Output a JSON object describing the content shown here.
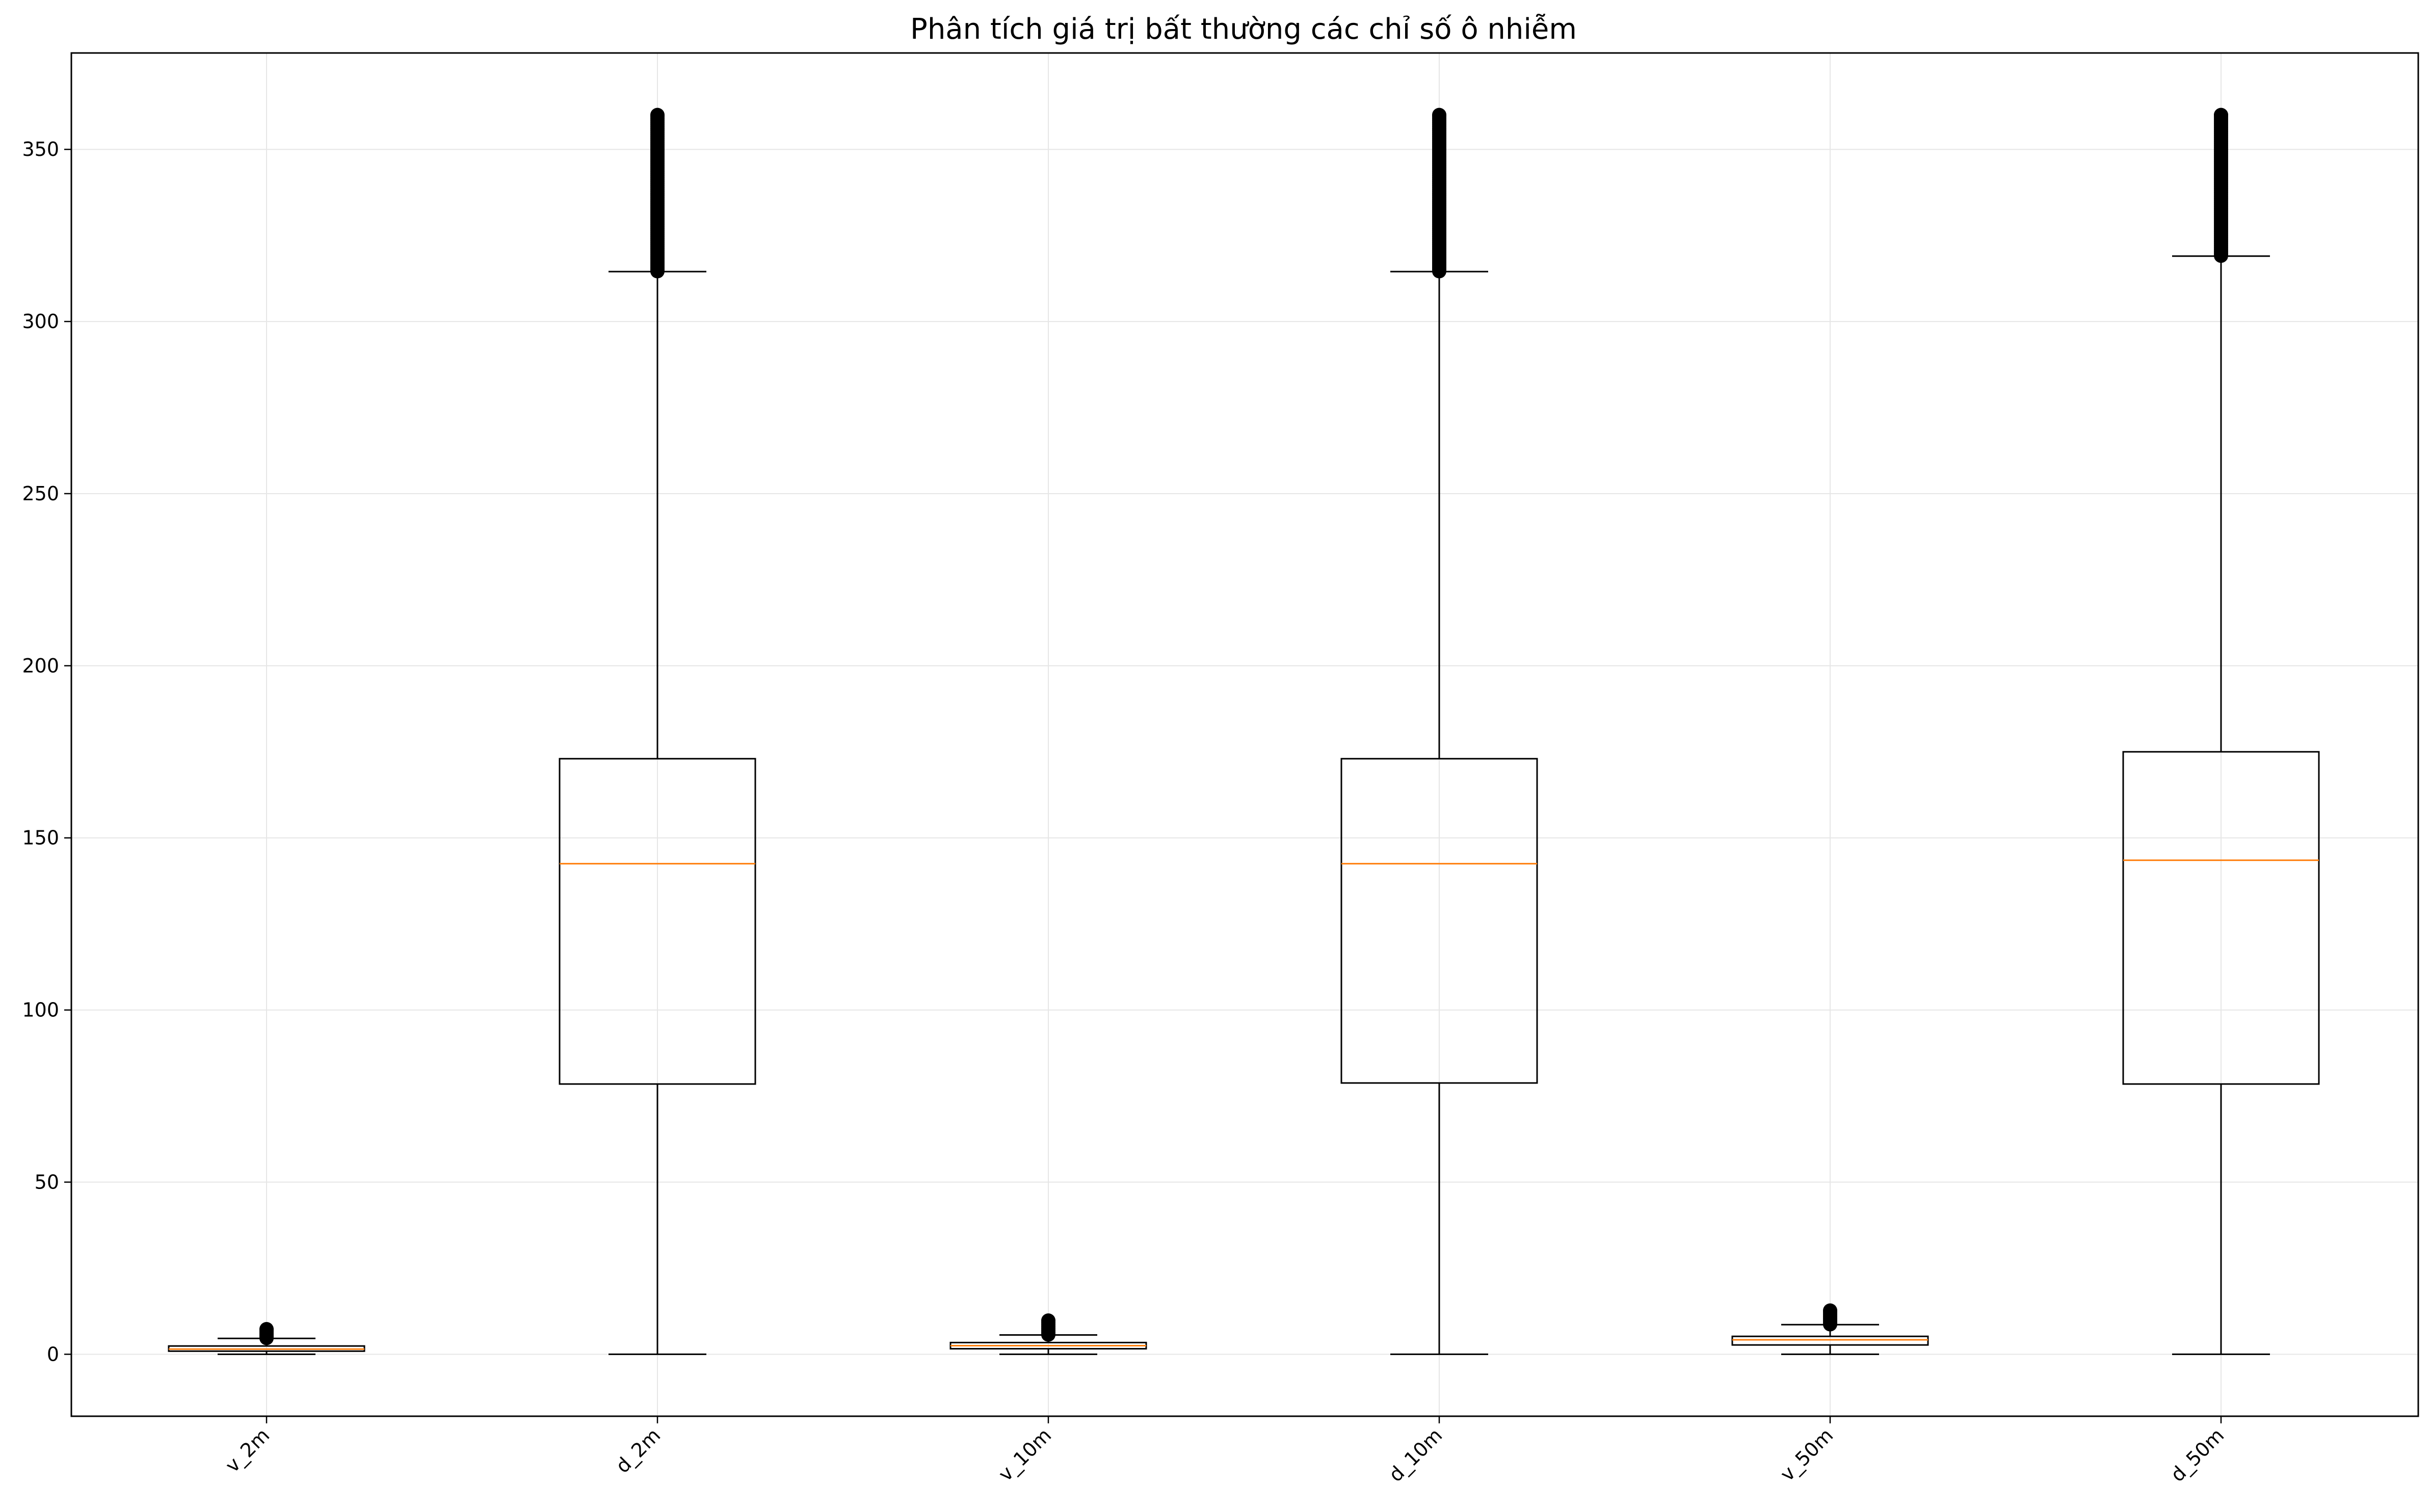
{
  "chart_data": {
    "type": "boxplot",
    "title": "Phân tích giá trị bất thường các chỉ số ô nhiễm",
    "xlabel": "",
    "ylabel": "",
    "ylim": [
      -18,
      378
    ],
    "yticks": [
      "0",
      "50",
      "100",
      "150",
      "200",
      "250",
      "300",
      "350"
    ],
    "ytick_values": [
      0,
      50,
      100,
      150,
      200,
      250,
      300,
      350
    ],
    "grid": true,
    "categories": [
      "v_2m",
      "d_2m",
      "v_10m",
      "d_10m",
      "v_50m",
      "d_50m"
    ],
    "boxes": [
      {
        "label": "v_2m",
        "whisker_low": 0,
        "q1": 0.9,
        "median": 1.5,
        "q3": 2.4,
        "whisker_high": 4.6,
        "outliers_from": 4.7,
        "outliers_to": 7.3
      },
      {
        "label": "d_2m",
        "whisker_low": 0,
        "q1": 78.5,
        "median": 142.5,
        "q3": 173.0,
        "whisker_high": 314.5,
        "outliers_from": 314.6,
        "outliers_to": 360
      },
      {
        "label": "v_10m",
        "whisker_low": 0,
        "q1": 1.6,
        "median": 2.5,
        "q3": 3.4,
        "whisker_high": 5.6,
        "outliers_from": 5.7,
        "outliers_to": 9.8
      },
      {
        "label": "d_10m",
        "whisker_low": 0,
        "q1": 78.8,
        "median": 142.5,
        "q3": 173.0,
        "whisker_high": 314.5,
        "outliers_from": 314.6,
        "outliers_to": 360
      },
      {
        "label": "v_50m",
        "whisker_low": 0,
        "q1": 2.7,
        "median": 4.2,
        "q3": 5.2,
        "whisker_high": 8.6,
        "outliers_from": 8.7,
        "outliers_to": 12.7
      },
      {
        "label": "d_50m",
        "whisker_low": 0,
        "q1": 78.5,
        "median": 143.5,
        "q3": 175.0,
        "whisker_high": 319.0,
        "outliers_from": 319.1,
        "outliers_to": 360
      }
    ],
    "colors": {
      "box_edge": "#000000",
      "median": "#ff7f0e",
      "outlier": "#000000",
      "grid": "#e6e6e6",
      "axes": "#000000"
    }
  }
}
